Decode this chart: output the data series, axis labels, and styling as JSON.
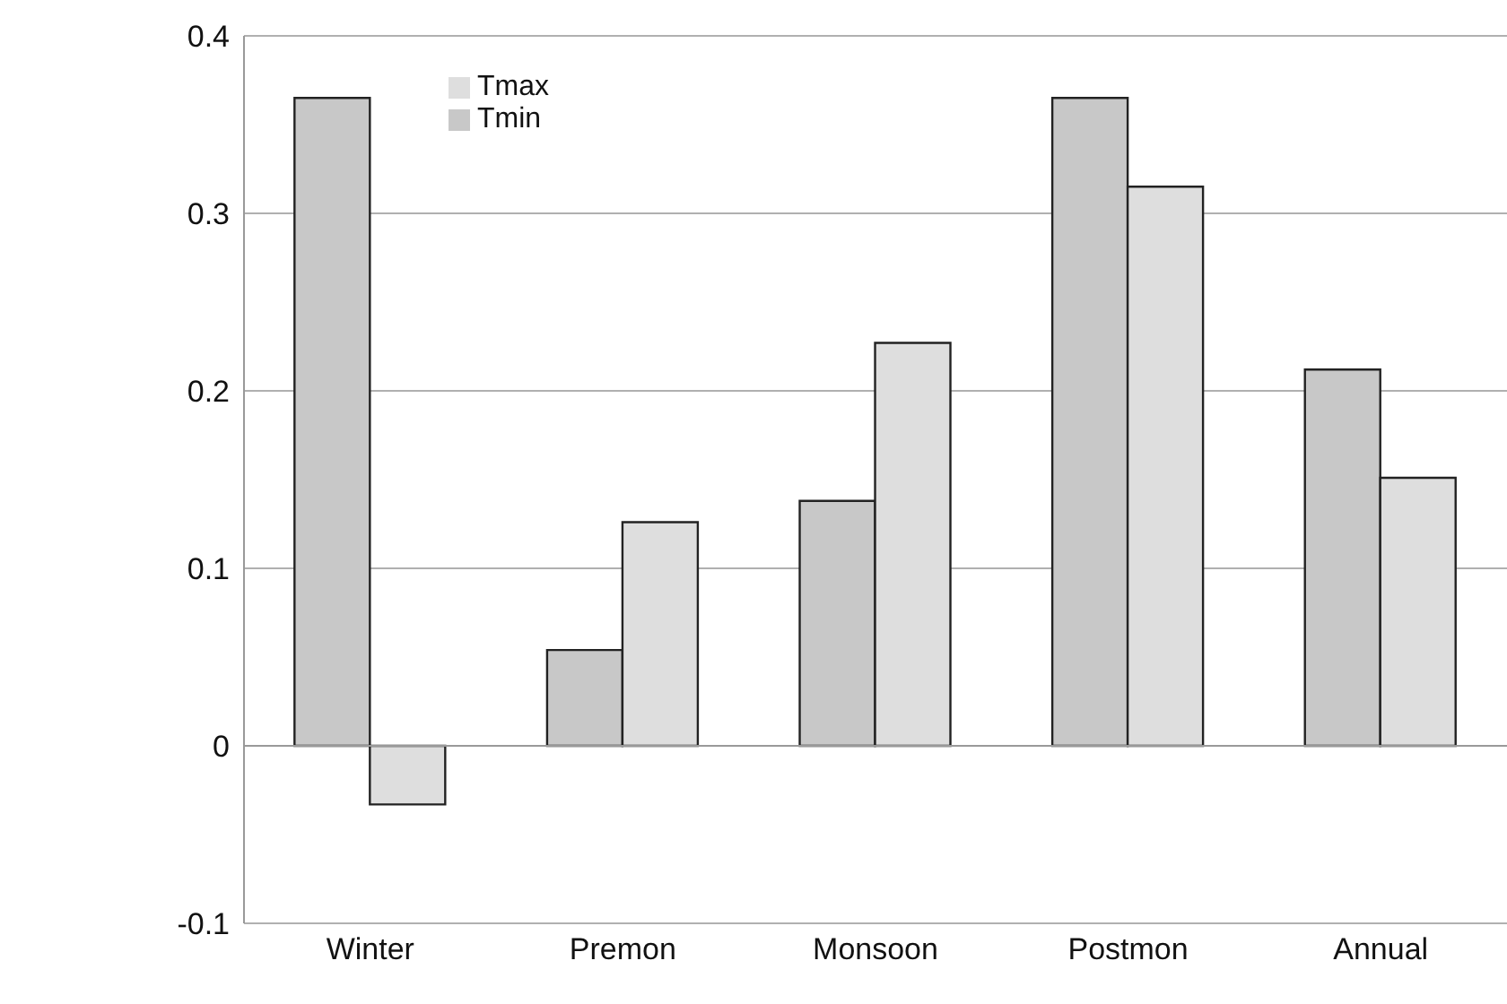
{
  "chart_data": {
    "type": "bar",
    "categories": [
      "Winter",
      "Premon",
      "Monsoon",
      "Postmon",
      "Annual"
    ],
    "series": [
      {
        "name": "Tmin",
        "color": "#c8c8c8",
        "values": [
          0.365,
          0.054,
          0.138,
          0.365,
          0.212
        ]
      },
      {
        "name": "Tmax",
        "color": "#dedede",
        "values": [
          -0.033,
          0.126,
          0.227,
          0.315,
          0.151
        ]
      }
    ],
    "ylim": [
      -0.1,
      0.4
    ],
    "yticks": [
      -0.1,
      0,
      0.1,
      0.2,
      0.3,
      0.4
    ],
    "grid": "y",
    "legend": "top left"
  }
}
